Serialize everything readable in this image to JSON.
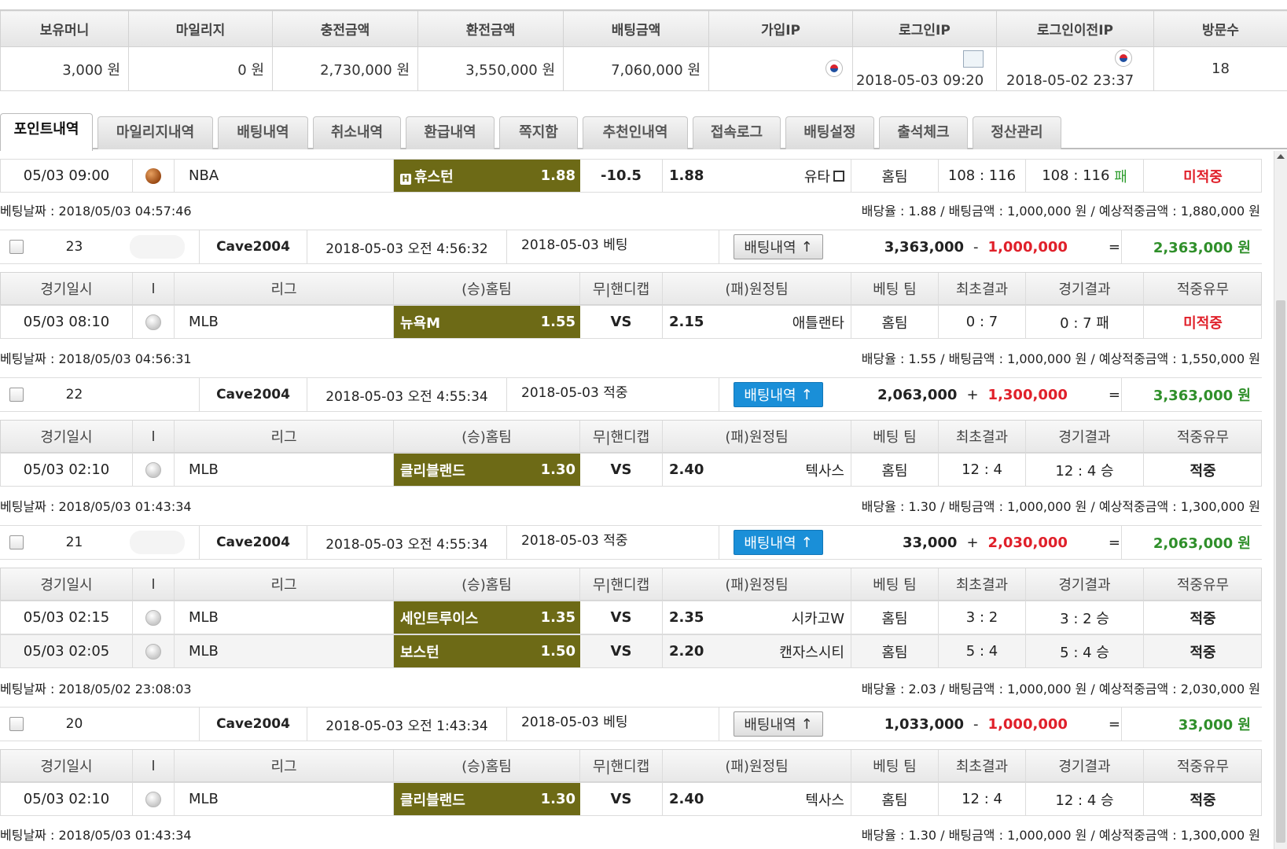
{
  "summary": {
    "headers": [
      "보유머니",
      "마일리지",
      "충전금액",
      "환전금액",
      "배팅금액",
      "가입IP",
      "로그인IP",
      "로그인이전IP",
      "방문수"
    ],
    "values": {
      "money": "3,000 원",
      "mileage": "0 원",
      "charge": "2,730,000 원",
      "exchange": "3,550,000 원",
      "betting": "7,060,000 원",
      "login_date": "2018-05-03 09:20",
      "prev_login_date": "2018-05-02 23:37",
      "visits": "18"
    }
  },
  "tabs": [
    "포인트내역",
    "마일리지내역",
    "배팅내역",
    "취소내역",
    "환급내역",
    "쪽지함",
    "추천인내역",
    "접속로그",
    "배팅설정",
    "출석체크",
    "정산관리"
  ],
  "columns": [
    "경기일시",
    "I",
    "리그",
    "(승)홈팀",
    "무|핸디캡",
    "(패)원정팀",
    "베팅 팀",
    "최초결과",
    "경기결과",
    "적중유무"
  ],
  "top_game": {
    "date": "05/03 09:00",
    "league": "NBA",
    "home": "휴스턴",
    "home_odds": "1.88",
    "handicap": "-10.5",
    "away_odds": "1.88",
    "away": "유타",
    "pick": "홈팀",
    "first": "108 : 116",
    "result_score": "108 : 116",
    "result_mark": "패",
    "hit": "미적중"
  },
  "top_info": {
    "date": "베팅날짜 : 2018/05/03 04:57:46",
    "summary": "배당율 : 1.88 / 배팅금액 : 1,000,000 원 / 예상적중금액 : 1,880,000 원"
  },
  "entries": [
    {
      "no": "23",
      "user": "Cave2004",
      "time": "2018-05-03 오전 4:56:32",
      "memo": "2018-05-03 베팅",
      "btn": "배팅내역",
      "btn_arrow": "↑",
      "before": "3,363,000",
      "op": "-",
      "amount": "1,000,000",
      "eq": "=",
      "after": "2,363,000 원",
      "games": [
        {
          "date": "05/03 08:10",
          "league": "MLB",
          "home": "뉴욕M",
          "home_odds": "1.55",
          "handicap": "VS",
          "away_odds": "2.15",
          "away": "애틀랜타",
          "pick": "홈팀",
          "first": "0 : 7",
          "result": "0 : 7 패",
          "hit": "미적중"
        }
      ],
      "info_date": "베팅날짜 : 2018/05/03 04:56:31",
      "info_summary": "배당율 : 1.55 / 배팅금액 : 1,000,000 원 / 예상적중금액 : 1,550,000 원"
    },
    {
      "no": "22",
      "user": "Cave2004",
      "time": "2018-05-03 오전 4:55:34",
      "memo": "2018-05-03 적중",
      "btn": "배팅내역",
      "btn_arrow": "↑",
      "before": "2,063,000",
      "op": "+",
      "amount": "1,300,000",
      "eq": "=",
      "after": "3,363,000 원",
      "games": [
        {
          "date": "05/03 02:10",
          "league": "MLB",
          "home": "클리블랜드",
          "home_odds": "1.30",
          "handicap": "VS",
          "away_odds": "2.40",
          "away": "텍사스",
          "pick": "홈팀",
          "first": "12 : 4",
          "result": "12 : 4 승",
          "hit": "적중"
        }
      ],
      "info_date": "베팅날짜 : 2018/05/03 01:43:34",
      "info_summary": "배당율 : 1.30 / 배팅금액 : 1,000,000 원 / 예상적중금액 : 1,300,000 원"
    },
    {
      "no": "21",
      "user": "Cave2004",
      "time": "2018-05-03 오전 4:55:34",
      "memo": "2018-05-03 적중",
      "btn": "배팅내역",
      "btn_arrow": "↑",
      "before": "33,000",
      "op": "+",
      "amount": "2,030,000",
      "eq": "=",
      "after": "2,063,000 원",
      "games": [
        {
          "date": "05/03 02:15",
          "league": "MLB",
          "home": "세인트루이스",
          "home_odds": "1.35",
          "handicap": "VS",
          "away_odds": "2.35",
          "away": "시카고W",
          "pick": "홈팀",
          "first": "3 : 2",
          "result": "3 : 2 승",
          "hit": "적중"
        },
        {
          "date": "05/03 02:05",
          "league": "MLB",
          "home": "보스턴",
          "home_odds": "1.50",
          "handicap": "VS",
          "away_odds": "2.20",
          "away": "캔자스시티",
          "pick": "홈팀",
          "first": "5 : 4",
          "result": "5 : 4 승",
          "hit": "적중"
        }
      ],
      "info_date": "베팅날짜 : 2018/05/02 23:08:03",
      "info_summary": "배당율 : 2.03 / 배팅금액 : 1,000,000 원 / 예상적중금액 : 2,030,000 원"
    },
    {
      "no": "20",
      "user": "Cave2004",
      "time": "2018-05-03 오전 1:43:34",
      "memo": "2018-05-03 베팅",
      "btn": "배팅내역",
      "btn_arrow": "↑",
      "before": "1,033,000",
      "op": "-",
      "amount": "1,000,000",
      "eq": "=",
      "after": "33,000 원",
      "games": [
        {
          "date": "05/03 02:10",
          "league": "MLB",
          "home": "클리블랜드",
          "home_odds": "1.30",
          "handicap": "VS",
          "away_odds": "2.40",
          "away": "텍사스",
          "pick": "홈팀",
          "first": "12 : 4",
          "result": "12 : 4 승",
          "hit": "적중"
        }
      ],
      "info_date": "베팅날짜 : 2018/05/03 01:43:34",
      "info_summary": "배당율 : 1.30 / 배팅금액 : 1,000,000 원 / 예상적중금액 : 1,300,000 원"
    }
  ],
  "colors": {
    "team_bg": "#6d6a16",
    "button_blue": "#1a8fd8",
    "red": "#e0202a",
    "green": "#2f8f2a"
  }
}
